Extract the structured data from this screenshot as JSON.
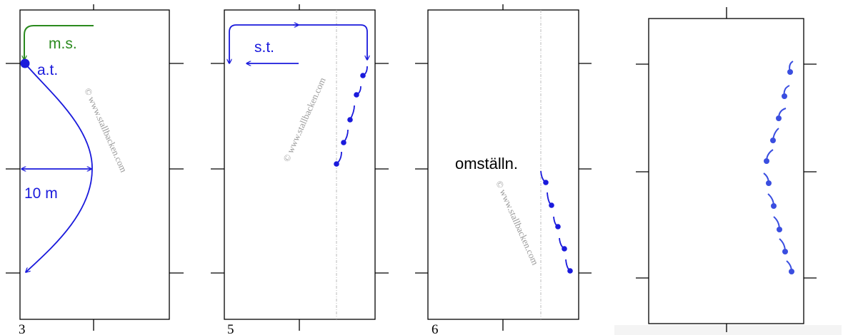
{
  "colors": {
    "blue_path": "#1a1adc",
    "blue_marker": "#3a4ee0",
    "green": "#2a8a1e",
    "watermark": "#9a9a9a",
    "frame": "#000000",
    "gridline": "#bbbbbb"
  },
  "panels": [
    {
      "number": "3",
      "labels": {
        "ms": "m.s.",
        "at": "a.t.",
        "distance": "10 m"
      },
      "watermark": "© www.stallbacken.com"
    },
    {
      "number": "5",
      "labels": {
        "st": "s.t."
      },
      "watermark": "© www.stallbacken.com"
    },
    {
      "number": "6",
      "labels": {
        "omst": "omställn."
      },
      "watermark": "© www.stallbacken.com"
    },
    {
      "number": "",
      "labels": {}
    }
  ]
}
